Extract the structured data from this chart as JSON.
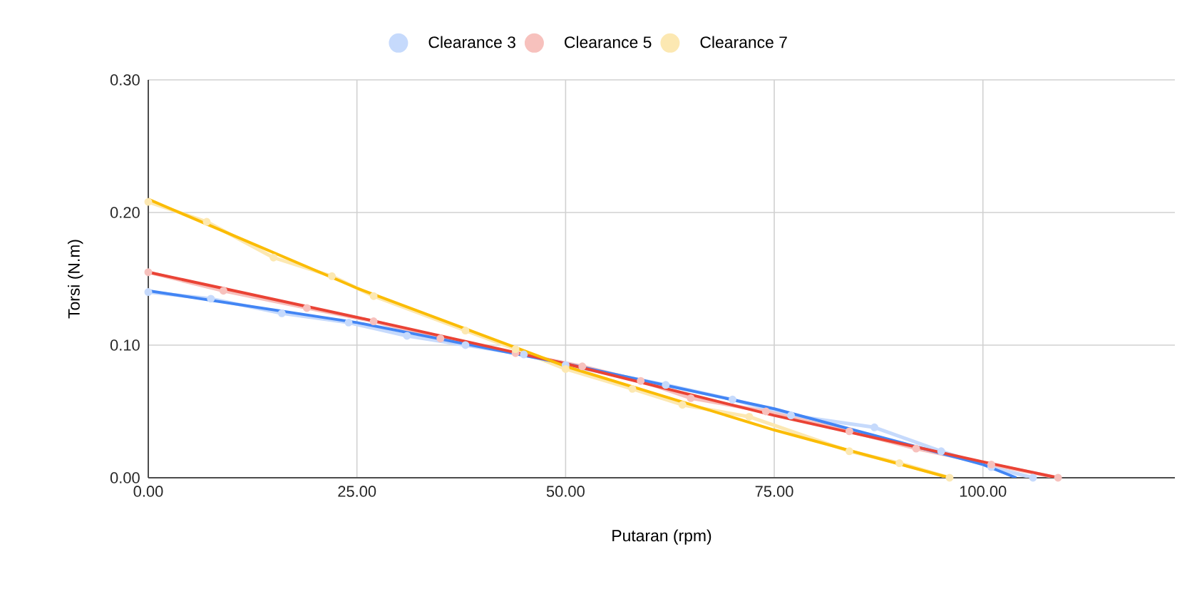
{
  "chart_data": {
    "type": "line",
    "xlabel": "Putaran (rpm)",
    "ylabel": "Torsi (N.m)",
    "xlim": [
      0,
      123
    ],
    "ylim": [
      0,
      0.3
    ],
    "xticks": [
      {
        "value": 0,
        "label": "0.00"
      },
      {
        "value": 25,
        "label": "25.00"
      },
      {
        "value": 50,
        "label": "50.00"
      },
      {
        "value": 75,
        "label": "75.00"
      },
      {
        "value": 100,
        "label": "100.00"
      }
    ],
    "yticks": [
      {
        "value": 0,
        "label": "0.00"
      },
      {
        "value": 0.1,
        "label": "0.10"
      },
      {
        "value": 0.2,
        "label": "0.20"
      },
      {
        "value": 0.3,
        "label": "0.30"
      }
    ],
    "grid": true,
    "legend": "top",
    "series": [
      {
        "name": "Clearance 3",
        "color": "#c6dafc",
        "marker": "circle",
        "x": [
          0,
          7.5,
          16,
          24,
          31,
          38,
          45,
          50,
          62,
          70,
          77,
          87,
          95,
          101,
          106
        ],
        "values": [
          0.14,
          0.135,
          0.124,
          0.117,
          0.107,
          0.1,
          0.093,
          0.085,
          0.07,
          0.059,
          0.047,
          0.038,
          0.02,
          0.008,
          0.0
        ]
      },
      {
        "name": "Clearance 5",
        "color": "#f7c1bd",
        "marker": "circle",
        "x": [
          0,
          9,
          19,
          27,
          35,
          44,
          52,
          59,
          65,
          74,
          84,
          92,
          101,
          109
        ],
        "values": [
          0.155,
          0.141,
          0.128,
          0.118,
          0.105,
          0.094,
          0.084,
          0.073,
          0.06,
          0.05,
          0.035,
          0.022,
          0.01,
          0.0
        ]
      },
      {
        "name": "Clearance 7",
        "color": "#fce8b2",
        "marker": "circle",
        "x": [
          0,
          7,
          15,
          22,
          27,
          38,
          44,
          50,
          58,
          64,
          72,
          84,
          90,
          96
        ],
        "values": [
          0.208,
          0.193,
          0.166,
          0.152,
          0.137,
          0.111,
          0.097,
          0.082,
          0.067,
          0.055,
          0.046,
          0.02,
          0.011,
          0.0
        ]
      },
      {
        "type": "line",
        "color": "#4285f4",
        "marker": "none",
        "x": [
          0,
          25,
          50,
          75,
          100,
          104
        ],
        "values": [
          0.141,
          0.117,
          0.086,
          0.052,
          0.01,
          0.0
        ]
      },
      {
        "type": "line",
        "color": "#ea4335",
        "marker": "none",
        "x": [
          0,
          25,
          50,
          75,
          100,
          109
        ],
        "values": [
          0.155,
          0.121,
          0.086,
          0.047,
          0.012,
          0.0
        ]
      },
      {
        "type": "line",
        "color": "#fbbc04",
        "marker": "none",
        "x": [
          0,
          25,
          50,
          75,
          96
        ],
        "values": [
          0.21,
          0.143,
          0.084,
          0.036,
          0.0
        ]
      }
    ]
  }
}
